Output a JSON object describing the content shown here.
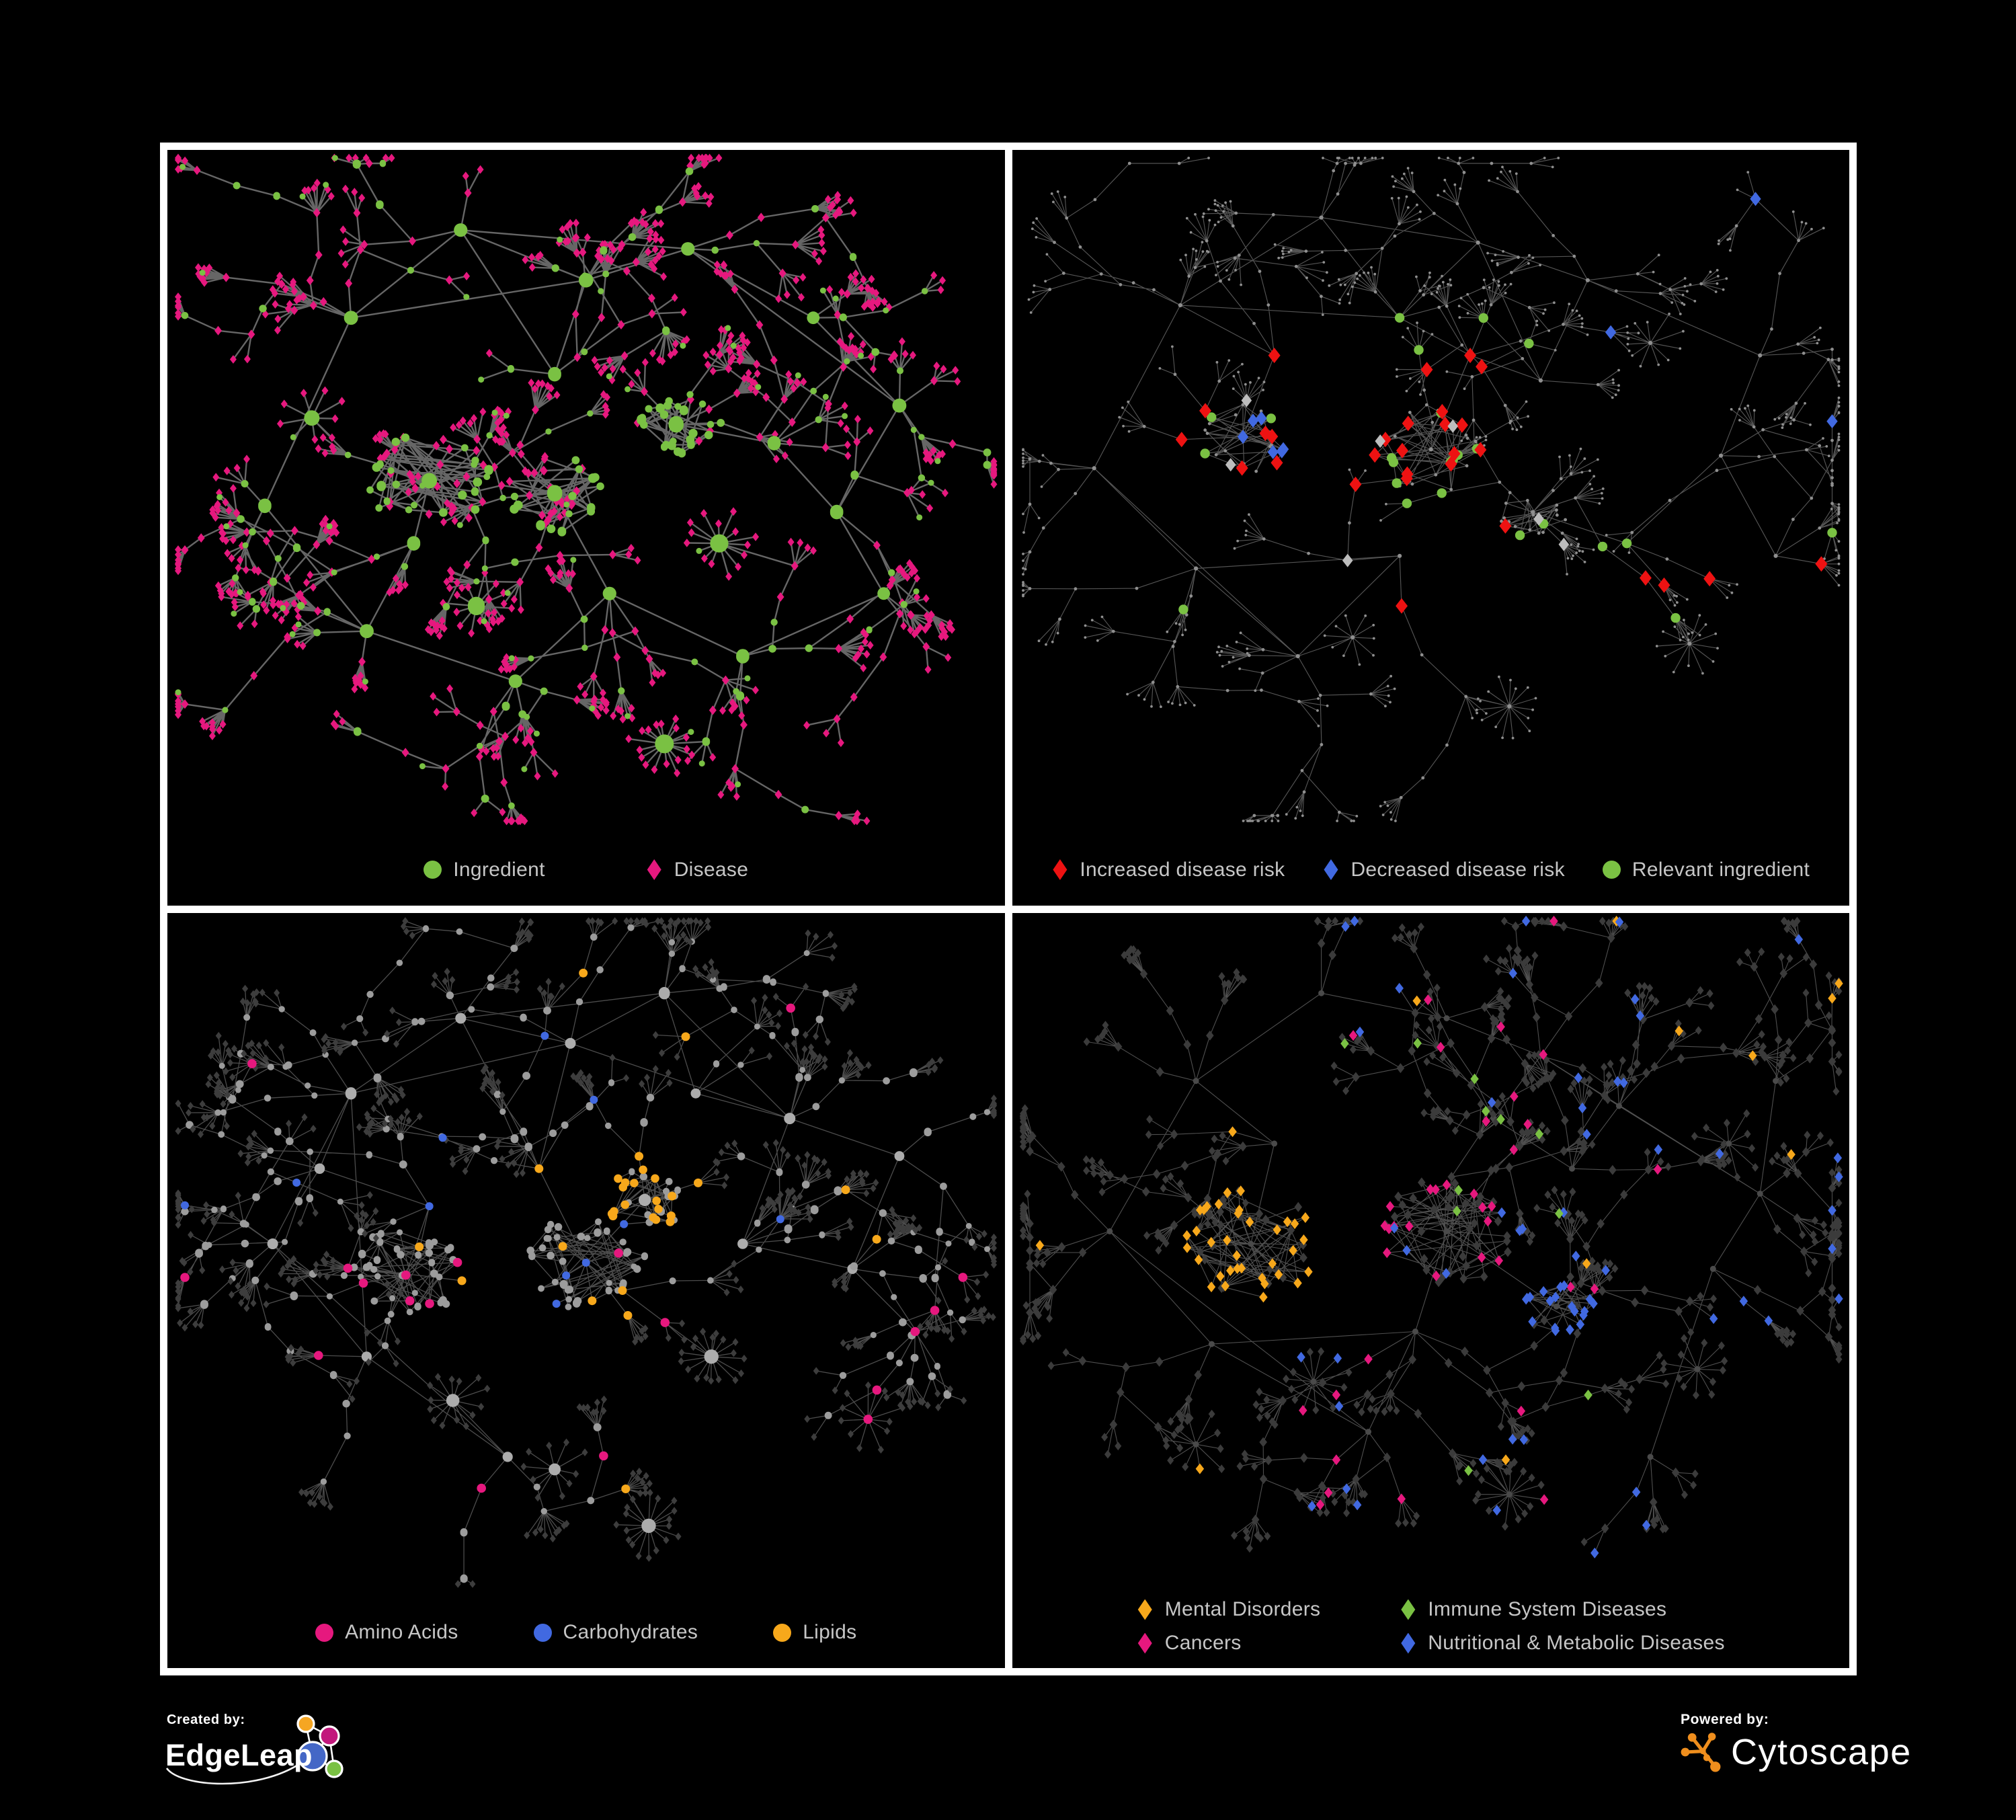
{
  "page": {
    "background": "#000000",
    "frame_color": "#FFFFFF",
    "legend_text_color": "#C6C6C6"
  },
  "panels": [
    {
      "id": "ingredients-diseases",
      "legend": [
        {
          "label": "Ingredient",
          "marker": "circle",
          "color": "#7AC143"
        },
        {
          "label": "Disease",
          "marker": "diamond",
          "color": "#E6187E"
        }
      ],
      "network": {
        "seed": 7,
        "palette": {
          "ingredient": "#7AC143",
          "disease": "#E6187E"
        },
        "edge": {
          "color": "#6B6B6B",
          "width": 2.4,
          "opacity": 0.95
        }
      }
    },
    {
      "id": "disease-risk",
      "legend": [
        {
          "label": "Increased disease risk",
          "marker": "diamond",
          "color": "#EE1212"
        },
        {
          "label": "Decreased disease risk",
          "marker": "diamond",
          "color": "#4169E1"
        },
        {
          "label": "Relevant ingredient",
          "marker": "circle",
          "color": "#7AC143"
        }
      ],
      "network": {
        "seed": 12,
        "palette": {
          "node": "#8F8F8F",
          "increased": "#EE1212",
          "decreased": "#4169E1",
          "relevant": "#7AC143",
          "unspecified": "#BDBDBD"
        },
        "counts": {
          "increased": 29,
          "decreased": 9,
          "relevant": 24,
          "unspecified": 7
        },
        "edge": {
          "color": "#5D5D5D",
          "width": 1.15,
          "opacity": 0.9
        }
      }
    },
    {
      "id": "nutrient-classes",
      "legend": [
        {
          "label": "Amino Acids",
          "marker": "circle",
          "color": "#E6187E"
        },
        {
          "label": "Carbohydrates",
          "marker": "circle",
          "color": "#4169E1"
        },
        {
          "label": "Lipids",
          "marker": "circle",
          "color": "#F7A81B"
        }
      ],
      "network": {
        "seed": 23,
        "palette": {
          "other_node": "#9C9C9C",
          "other_hub": "#ACACAC",
          "other_leaf": "#3D3D3D",
          "amino_acids": "#E6187E",
          "carbohydrates": "#4169E1",
          "lipids": "#F7A81B"
        },
        "counts": {
          "amino_acids": 19,
          "carbohydrates": 10,
          "lipids_scattered": 18
        },
        "edge": {
          "color": "#7A7A7A",
          "width": 1.3,
          "opacity": 0.62
        }
      }
    },
    {
      "id": "disease-categories",
      "legend": [
        {
          "label": "Mental Disorders",
          "marker": "diamond",
          "color": "#F7A81B"
        },
        {
          "label": "Immune System Diseases",
          "marker": "diamond",
          "color": "#7AC143"
        },
        {
          "label": "Cancers",
          "marker": "diamond",
          "color": "#E6187E"
        },
        {
          "label": "Nutritional & Metabolic Diseases",
          "marker": "diamond",
          "color": "#4169E1"
        }
      ],
      "network": {
        "seed": 42,
        "palette": {
          "other_node": "#3B3B3B",
          "other_hub": "#4A4A4A",
          "mental": "#F7A81B",
          "immune": "#7AC143",
          "cancers": "#E6187E",
          "nutritional": "#4169E1"
        },
        "counts": {
          "mental_scattered": 12,
          "cancers": 26,
          "nutritional": 52,
          "immune": 11
        },
        "edge": {
          "color": "#636363",
          "width": 1.1,
          "opacity": 0.8
        }
      }
    }
  ],
  "footer": {
    "created_by": {
      "caption": "Created by:",
      "brand": "EdgeLeap",
      "glyph_colors": [
        "#F5A623",
        "#C2187C",
        "#4467C6",
        "#7AC143"
      ]
    },
    "powered_by": {
      "caption": "Powered by:",
      "brand": "Cytoscape",
      "accent": "#EF8E1D"
    }
  }
}
